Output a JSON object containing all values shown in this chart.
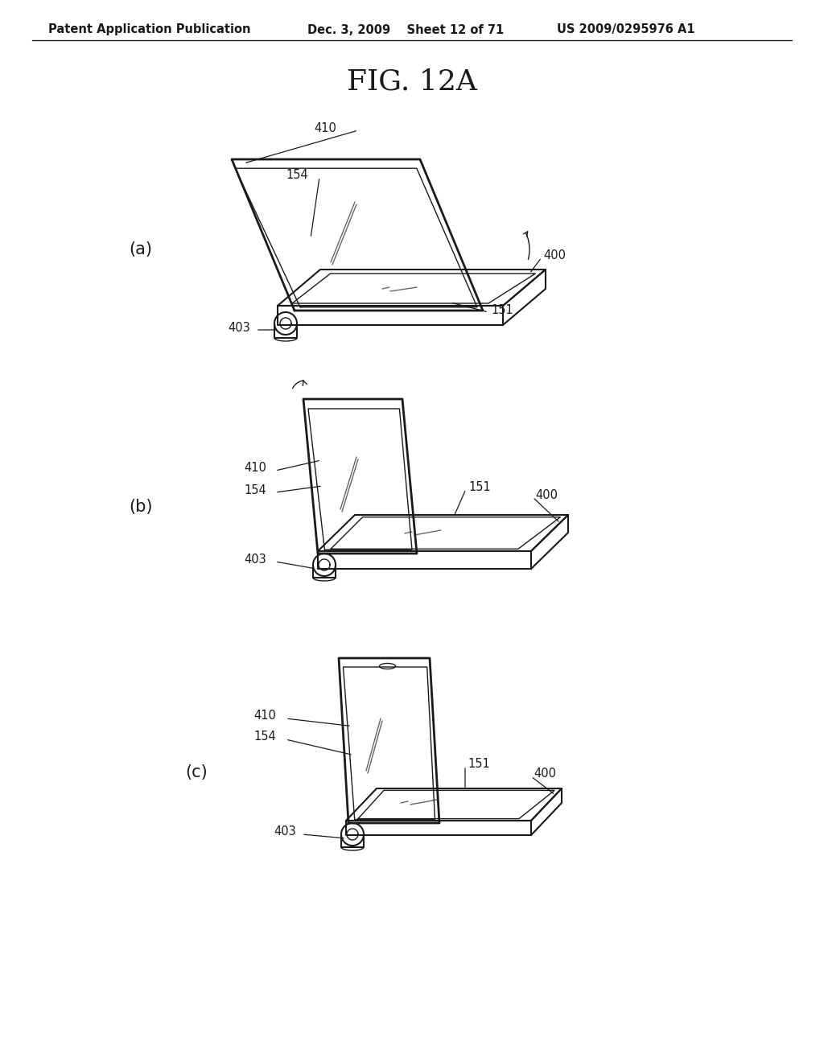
{
  "title": "FIG. 12A",
  "header_left": "Patent Application Publication",
  "header_center": "Dec. 3, 2009    Sheet 12 of 71",
  "header_right": "US 2009/0295976 A1",
  "bg_color": "#ffffff",
  "line_color": "#1a1a1a",
  "label_fontsize": 10.5,
  "title_fontsize": 26,
  "header_fontsize": 10.5,
  "subfig_label_fontsize": 15
}
